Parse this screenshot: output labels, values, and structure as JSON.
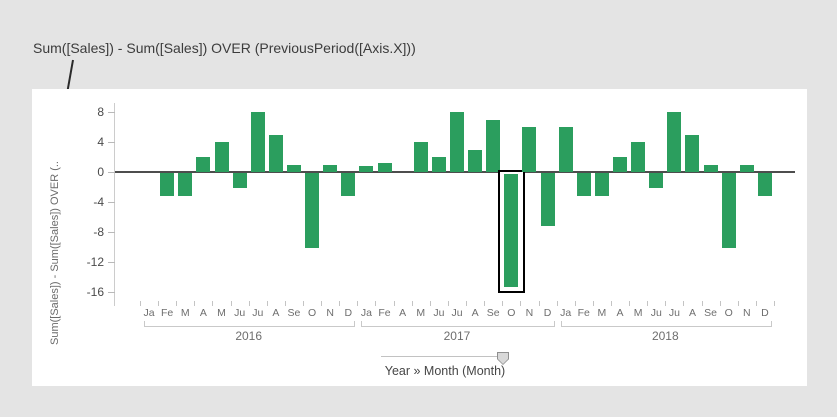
{
  "annotation": {
    "expression": "Sum([Sales]) - Sum([Sales]) OVER (PreviousPeriod([Axis.X]))"
  },
  "chart_data": {
    "type": "bar",
    "title": "",
    "y_axis": {
      "label": "Sum([Sales]) - Sum([Sales]) OVER (..",
      "ticks": [
        8,
        4,
        0,
        -4,
        -8,
        -12,
        -16
      ],
      "ylim": [
        -17.5,
        9.5
      ],
      "grid": false
    },
    "x_axis": {
      "groups": [
        {
          "year": "2016",
          "months": [
            "Ja",
            "Fe",
            "M",
            "A",
            "M",
            "Ju",
            "Ju",
            "A",
            "Se",
            "O",
            "N",
            "D"
          ],
          "values": [
            null,
            -3,
            -3,
            2,
            4,
            -2,
            8,
            5,
            1,
            -10,
            1,
            -3
          ]
        },
        {
          "year": "2017",
          "months": [
            "Ja",
            "Fe",
            "A",
            "M",
            "Ju",
            "Ju",
            "A",
            "Se",
            "O",
            "N",
            "D"
          ],
          "values": [
            0.8,
            1.2,
            null,
            4,
            2,
            8,
            3,
            7,
            -15,
            6,
            -7
          ]
        },
        {
          "year": "2018",
          "months": [
            "Ja",
            "Fe",
            "M",
            "A",
            "M",
            "Ju",
            "Ju",
            "A",
            "Se",
            "O",
            "N",
            "D"
          ],
          "values": [
            6,
            -3,
            -3,
            2,
            4,
            -2,
            8,
            5,
            1,
            -10,
            1,
            -3
          ]
        }
      ],
      "hierarchy_slider_label": "Year » Month (Month)"
    },
    "highlight": {
      "group_index": 1,
      "month_index": 8,
      "year": "2017",
      "month": "O",
      "value": -15
    },
    "colors": {
      "bar": "#2b9e5e",
      "zero_line": "#4d4d4d",
      "axis_line": "#cccccc",
      "highlight_outline": "#000000",
      "background": "#e4e4e4",
      "panel": "#ffffff"
    },
    "legend_position": "none"
  }
}
